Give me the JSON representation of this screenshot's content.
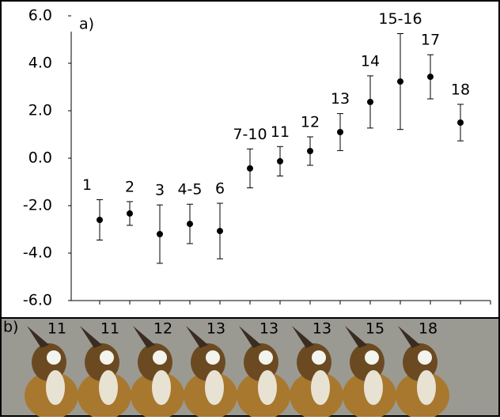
{
  "chart_data": {
    "type": "errorbar",
    "annotation": "a)",
    "categories": [
      "1",
      "2",
      "3",
      "4-5",
      "6",
      "7-10",
      "11",
      "12",
      "13",
      "14",
      "15-16",
      "17",
      "18"
    ],
    "values": [
      -2.6,
      -2.33,
      -3.2,
      -2.77,
      -3.07,
      -0.43,
      -0.13,
      0.3,
      1.1,
      2.37,
      3.23,
      3.43,
      1.5
    ],
    "errors": [
      0.85,
      0.5,
      1.23,
      0.83,
      1.17,
      0.82,
      0.62,
      0.6,
      0.78,
      1.1,
      2.02,
      0.93,
      0.77
    ],
    "color": "#000000",
    "ylim": [
      -6,
      6
    ],
    "yticks": [
      {
        "value": 6,
        "label": "6.0"
      },
      {
        "value": 4,
        "label": "4.0"
      },
      {
        "value": 2,
        "label": "2.0"
      },
      {
        "value": 0,
        "label": "0.0"
      },
      {
        "value": -2,
        "label": "-2.0"
      },
      {
        "value": -4,
        "label": "-4.0"
      },
      {
        "value": -6,
        "label": "-6.0"
      }
    ]
  },
  "photo_panel": {
    "label": "b)",
    "specimens": [
      "11",
      "11",
      "12",
      "13",
      "13",
      "13",
      "15",
      "18"
    ]
  }
}
